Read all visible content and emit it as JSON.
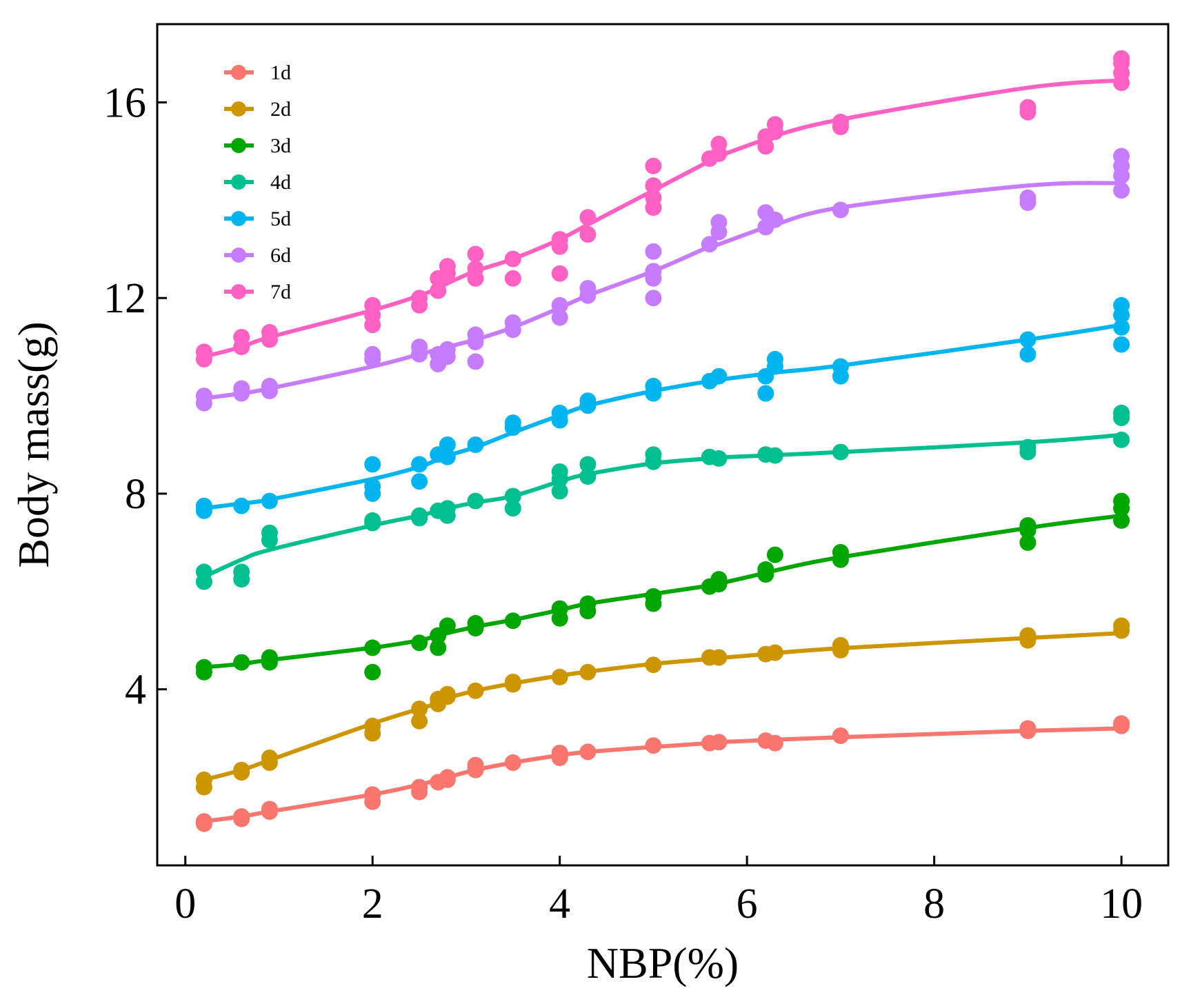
{
  "chart_data": {
    "type": "scatter",
    "title": "",
    "xlabel": "NBP(%)",
    "ylabel": "Body mass(g)",
    "xlim": [
      -0.3,
      10.5
    ],
    "ylim": [
      0.4,
      17.6
    ],
    "xticks": [
      0,
      2,
      4,
      6,
      8,
      10
    ],
    "yticks": [
      4,
      8,
      12,
      16
    ],
    "x_tick_labels": [
      "0",
      "2",
      "4",
      "6",
      "8",
      "10"
    ],
    "y_tick_labels": [
      "4",
      "8",
      "12",
      "16"
    ],
    "grid": false,
    "legend_position": "top-left",
    "x": [
      0.2,
      0.6,
      0.9,
      2.0,
      2.5,
      2.7,
      2.8,
      3.1,
      3.5,
      4.0,
      4.3,
      5.0,
      5.6,
      5.7,
      6.2,
      6.3,
      7.0,
      9.0,
      10.0
    ],
    "series": [
      {
        "name": "1d",
        "color": "#f8766d",
        "fit": [
          1.3,
          1.4,
          1.5,
          1.85,
          2.05,
          2.15,
          2.2,
          2.35,
          2.5,
          2.65,
          2.72,
          2.82,
          2.9,
          2.92,
          2.96,
          2.97,
          3.02,
          3.15,
          3.2
        ],
        "points": [
          [
            0.2,
            1.25
          ],
          [
            0.2,
            1.3
          ],
          [
            0.6,
            1.35
          ],
          [
            0.6,
            1.4
          ],
          [
            0.9,
            1.5
          ],
          [
            0.9,
            1.55
          ],
          [
            2.0,
            1.7
          ],
          [
            2.0,
            1.85
          ],
          [
            2.5,
            1.9
          ],
          [
            2.5,
            2.0
          ],
          [
            2.7,
            2.1
          ],
          [
            2.8,
            2.15
          ],
          [
            2.8,
            2.2
          ],
          [
            3.1,
            2.35
          ],
          [
            3.1,
            2.45
          ],
          [
            3.5,
            2.5
          ],
          [
            4.0,
            2.6
          ],
          [
            4.0,
            2.7
          ],
          [
            4.3,
            2.72
          ],
          [
            5.0,
            2.85
          ],
          [
            5.6,
            2.9
          ],
          [
            5.7,
            2.92
          ],
          [
            6.2,
            2.95
          ],
          [
            6.3,
            2.9
          ],
          [
            7.0,
            3.05
          ],
          [
            9.0,
            3.15
          ],
          [
            9.0,
            3.2
          ],
          [
            10.0,
            3.25
          ],
          [
            10.0,
            3.3
          ]
        ]
      },
      {
        "name": "2d",
        "color": "#cd9600",
        "fit": [
          2.15,
          2.35,
          2.55,
          3.3,
          3.6,
          3.72,
          3.82,
          3.97,
          4.12,
          4.28,
          4.36,
          4.52,
          4.62,
          4.64,
          4.72,
          4.74,
          4.84,
          5.05,
          5.15
        ],
        "points": [
          [
            0.2,
            2.0
          ],
          [
            0.2,
            2.15
          ],
          [
            0.6,
            2.3
          ],
          [
            0.6,
            2.35
          ],
          [
            0.9,
            2.5
          ],
          [
            0.9,
            2.6
          ],
          [
            2.0,
            3.1
          ],
          [
            2.0,
            3.25
          ],
          [
            2.5,
            3.35
          ],
          [
            2.5,
            3.6
          ],
          [
            2.7,
            3.7
          ],
          [
            2.7,
            3.8
          ],
          [
            2.8,
            3.9
          ],
          [
            2.8,
            3.85
          ],
          [
            3.1,
            3.97
          ],
          [
            3.5,
            4.1
          ],
          [
            3.5,
            4.15
          ],
          [
            4.0,
            4.25
          ],
          [
            4.3,
            4.35
          ],
          [
            5.0,
            4.5
          ],
          [
            5.6,
            4.65
          ],
          [
            5.7,
            4.65
          ],
          [
            6.2,
            4.72
          ],
          [
            6.3,
            4.75
          ],
          [
            7.0,
            4.8
          ],
          [
            7.0,
            4.9
          ],
          [
            9.0,
            5.0
          ],
          [
            9.0,
            5.1
          ],
          [
            10.0,
            5.2
          ],
          [
            10.0,
            5.3
          ]
        ]
      },
      {
        "name": "3d",
        "color": "#00a600",
        "fit": [
          4.45,
          4.52,
          4.6,
          4.85,
          5.0,
          5.1,
          5.15,
          5.28,
          5.42,
          5.62,
          5.75,
          5.95,
          6.12,
          6.16,
          6.38,
          6.43,
          6.7,
          7.3,
          7.55
        ],
        "points": [
          [
            0.2,
            4.35
          ],
          [
            0.2,
            4.45
          ],
          [
            0.6,
            4.55
          ],
          [
            0.9,
            4.55
          ],
          [
            0.9,
            4.65
          ],
          [
            2.0,
            4.35
          ],
          [
            2.0,
            4.85
          ],
          [
            2.5,
            4.95
          ],
          [
            2.7,
            4.85
          ],
          [
            2.7,
            5.1
          ],
          [
            2.8,
            5.3
          ],
          [
            3.1,
            5.25
          ],
          [
            3.1,
            5.35
          ],
          [
            3.5,
            5.4
          ],
          [
            4.0,
            5.45
          ],
          [
            4.0,
            5.65
          ],
          [
            4.3,
            5.6
          ],
          [
            4.3,
            5.75
          ],
          [
            5.0,
            5.75
          ],
          [
            5.0,
            5.9
          ],
          [
            5.6,
            6.1
          ],
          [
            5.7,
            6.15
          ],
          [
            5.7,
            6.25
          ],
          [
            6.2,
            6.35
          ],
          [
            6.2,
            6.45
          ],
          [
            6.3,
            6.75
          ],
          [
            7.0,
            6.65
          ],
          [
            7.0,
            6.8
          ],
          [
            9.0,
            7.0
          ],
          [
            9.0,
            7.25
          ],
          [
            9.0,
            7.35
          ],
          [
            10.0,
            7.45
          ],
          [
            10.0,
            7.7
          ],
          [
            10.0,
            7.85
          ]
        ]
      },
      {
        "name": "4d",
        "color": "#00bf8f",
        "fit": [
          6.3,
          6.65,
          6.85,
          7.35,
          7.55,
          7.65,
          7.7,
          7.82,
          7.95,
          8.25,
          8.4,
          8.62,
          8.72,
          8.74,
          8.78,
          8.79,
          8.85,
          9.05,
          9.2
        ],
        "points": [
          [
            0.2,
            6.2
          ],
          [
            0.2,
            6.4
          ],
          [
            0.6,
            6.25
          ],
          [
            0.6,
            6.4
          ],
          [
            0.9,
            7.05
          ],
          [
            0.9,
            7.2
          ],
          [
            2.0,
            7.4
          ],
          [
            2.0,
            7.45
          ],
          [
            2.5,
            7.5
          ],
          [
            2.5,
            7.55
          ],
          [
            2.7,
            7.65
          ],
          [
            2.8,
            7.55
          ],
          [
            2.8,
            7.7
          ],
          [
            3.1,
            7.85
          ],
          [
            3.5,
            7.7
          ],
          [
            3.5,
            7.95
          ],
          [
            4.0,
            8.05
          ],
          [
            4.0,
            8.3
          ],
          [
            4.0,
            8.45
          ],
          [
            4.3,
            8.35
          ],
          [
            4.3,
            8.6
          ],
          [
            5.0,
            8.65
          ],
          [
            5.0,
            8.8
          ],
          [
            5.6,
            8.75
          ],
          [
            5.7,
            8.72
          ],
          [
            6.2,
            8.8
          ],
          [
            6.3,
            8.78
          ],
          [
            7.0,
            8.85
          ],
          [
            9.0,
            8.85
          ],
          [
            9.0,
            8.95
          ],
          [
            10.0,
            9.1
          ],
          [
            10.0,
            9.55
          ],
          [
            10.0,
            9.65
          ]
        ]
      },
      {
        "name": "5d",
        "color": "#00b4f0",
        "fit": [
          7.7,
          7.8,
          7.88,
          8.3,
          8.55,
          8.7,
          8.78,
          8.95,
          9.25,
          9.6,
          9.8,
          10.1,
          10.3,
          10.33,
          10.45,
          10.48,
          10.62,
          11.15,
          11.45
        ],
        "points": [
          [
            0.2,
            7.65
          ],
          [
            0.2,
            7.75
          ],
          [
            0.6,
            7.75
          ],
          [
            0.9,
            7.85
          ],
          [
            2.0,
            8.0
          ],
          [
            2.0,
            8.15
          ],
          [
            2.0,
            8.6
          ],
          [
            2.5,
            8.25
          ],
          [
            2.5,
            8.6
          ],
          [
            2.7,
            8.8
          ],
          [
            2.8,
            8.75
          ],
          [
            2.8,
            9.0
          ],
          [
            3.1,
            9.0
          ],
          [
            3.5,
            9.35
          ],
          [
            3.5,
            9.45
          ],
          [
            4.0,
            9.5
          ],
          [
            4.0,
            9.65
          ],
          [
            4.3,
            9.8
          ],
          [
            4.3,
            9.9
          ],
          [
            5.0,
            10.05
          ],
          [
            5.0,
            10.2
          ],
          [
            5.6,
            10.3
          ],
          [
            5.7,
            10.4
          ],
          [
            6.2,
            10.05
          ],
          [
            6.2,
            10.4
          ],
          [
            6.3,
            10.6
          ],
          [
            6.3,
            10.75
          ],
          [
            7.0,
            10.4
          ],
          [
            7.0,
            10.6
          ],
          [
            9.0,
            10.85
          ],
          [
            9.0,
            11.15
          ],
          [
            10.0,
            11.05
          ],
          [
            10.0,
            11.4
          ],
          [
            10.0,
            11.65
          ],
          [
            10.0,
            11.85
          ]
        ]
      },
      {
        "name": "6d",
        "color": "#c77cff",
        "fit": [
          9.95,
          10.05,
          10.15,
          10.6,
          10.85,
          10.95,
          11.0,
          11.15,
          11.4,
          11.8,
          12.05,
          12.55,
          13.05,
          13.1,
          13.45,
          13.5,
          13.85,
          14.3,
          14.35
        ],
        "points": [
          [
            0.2,
            9.85
          ],
          [
            0.2,
            10.0
          ],
          [
            0.6,
            10.05
          ],
          [
            0.6,
            10.15
          ],
          [
            0.9,
            10.1
          ],
          [
            0.9,
            10.2
          ],
          [
            2.0,
            10.75
          ],
          [
            2.0,
            10.85
          ],
          [
            2.5,
            10.85
          ],
          [
            2.5,
            11.0
          ],
          [
            2.7,
            10.65
          ],
          [
            2.7,
            10.85
          ],
          [
            2.8,
            10.8
          ],
          [
            2.8,
            10.95
          ],
          [
            3.1,
            10.7
          ],
          [
            3.1,
            11.1
          ],
          [
            3.1,
            11.25
          ],
          [
            3.5,
            11.35
          ],
          [
            3.5,
            11.5
          ],
          [
            4.0,
            11.6
          ],
          [
            4.0,
            11.85
          ],
          [
            4.3,
            12.05
          ],
          [
            4.3,
            12.2
          ],
          [
            5.0,
            12.0
          ],
          [
            5.0,
            12.4
          ],
          [
            5.0,
            12.55
          ],
          [
            5.0,
            12.95
          ],
          [
            5.6,
            13.1
          ],
          [
            5.7,
            13.35
          ],
          [
            5.7,
            13.55
          ],
          [
            6.2,
            13.45
          ],
          [
            6.2,
            13.75
          ],
          [
            6.3,
            13.6
          ],
          [
            7.0,
            13.8
          ],
          [
            9.0,
            13.95
          ],
          [
            9.0,
            14.05
          ],
          [
            10.0,
            14.2
          ],
          [
            10.0,
            14.5
          ],
          [
            10.0,
            14.7
          ],
          [
            10.0,
            14.9
          ]
        ]
      },
      {
        "name": "7d",
        "color": "#ff61c3",
        "fit": [
          10.8,
          11.0,
          11.2,
          11.75,
          12.05,
          12.2,
          12.3,
          12.55,
          12.8,
          13.2,
          13.5,
          14.2,
          14.8,
          14.9,
          15.25,
          15.32,
          15.65,
          16.3,
          16.45
        ],
        "points": [
          [
            0.2,
            10.75
          ],
          [
            0.2,
            10.9
          ],
          [
            0.6,
            11.0
          ],
          [
            0.6,
            11.2
          ],
          [
            0.9,
            11.15
          ],
          [
            0.9,
            11.3
          ],
          [
            2.0,
            11.45
          ],
          [
            2.0,
            11.65
          ],
          [
            2.0,
            11.85
          ],
          [
            2.5,
            11.85
          ],
          [
            2.5,
            12.0
          ],
          [
            2.7,
            12.15
          ],
          [
            2.7,
            12.4
          ],
          [
            2.8,
            12.5
          ],
          [
            2.8,
            12.65
          ],
          [
            3.1,
            12.4
          ],
          [
            3.1,
            12.6
          ],
          [
            3.1,
            12.9
          ],
          [
            3.5,
            12.4
          ],
          [
            3.5,
            12.8
          ],
          [
            4.0,
            12.5
          ],
          [
            4.0,
            13.05
          ],
          [
            4.0,
            13.2
          ],
          [
            4.3,
            13.3
          ],
          [
            4.3,
            13.65
          ],
          [
            5.0,
            13.85
          ],
          [
            5.0,
            14.05
          ],
          [
            5.0,
            14.3
          ],
          [
            5.0,
            14.7
          ],
          [
            5.6,
            14.85
          ],
          [
            5.7,
            14.95
          ],
          [
            5.7,
            15.15
          ],
          [
            6.2,
            15.1
          ],
          [
            6.2,
            15.3
          ],
          [
            6.3,
            15.4
          ],
          [
            6.3,
            15.55
          ],
          [
            7.0,
            15.5
          ],
          [
            7.0,
            15.6
          ],
          [
            9.0,
            15.8
          ],
          [
            9.0,
            15.9
          ],
          [
            10.0,
            16.4
          ],
          [
            10.0,
            16.6
          ],
          [
            10.0,
            16.8
          ],
          [
            10.0,
            16.9
          ]
        ]
      }
    ]
  }
}
